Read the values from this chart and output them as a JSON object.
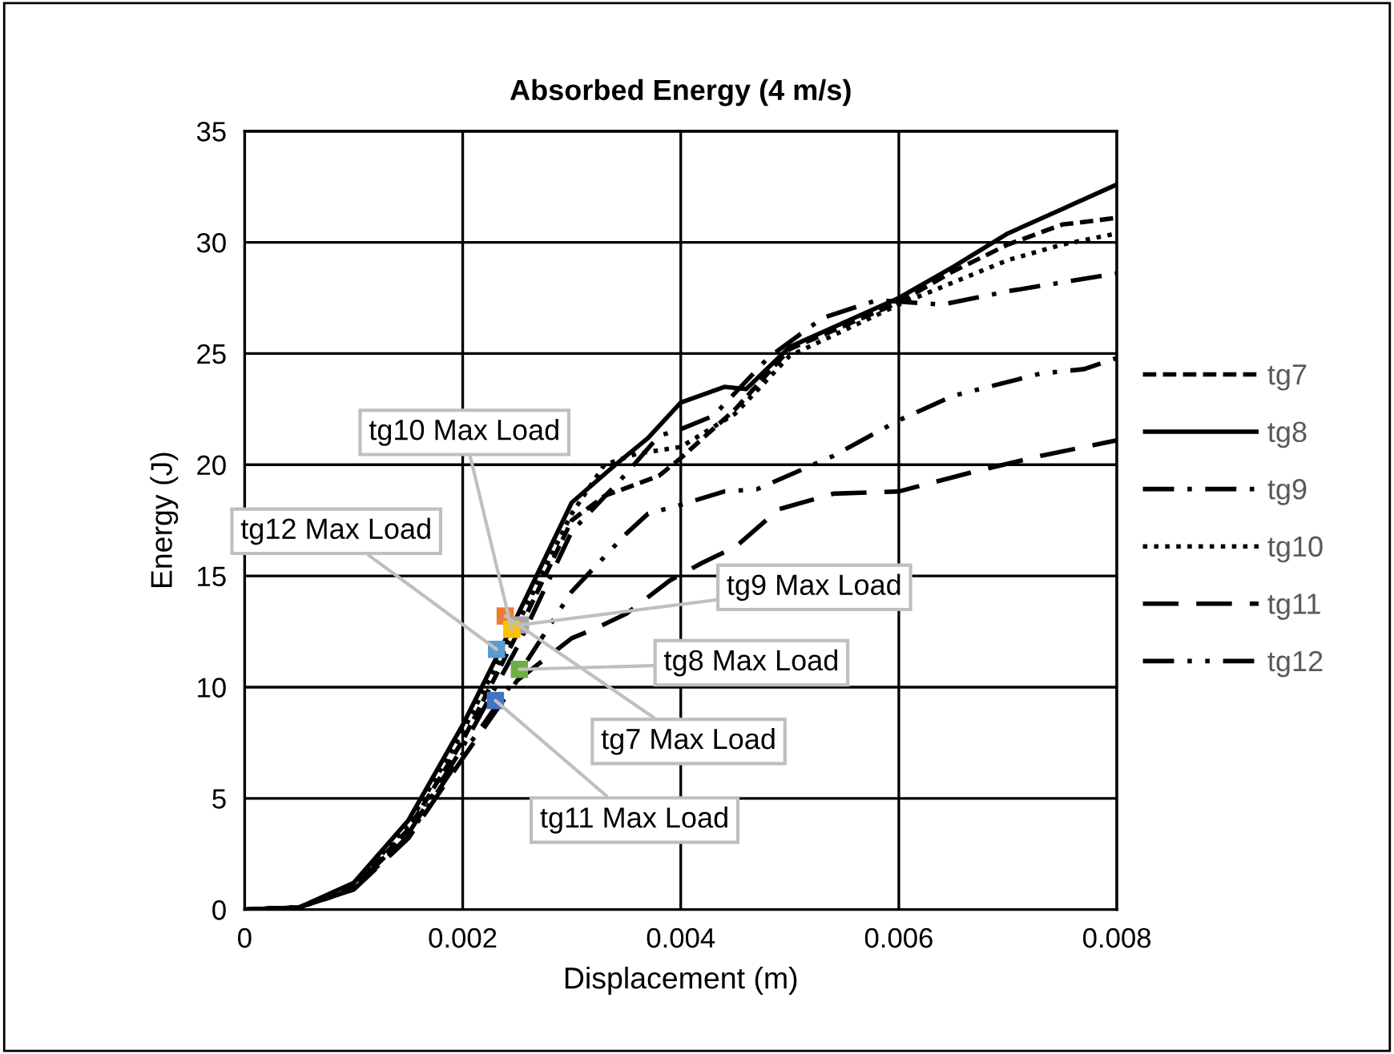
{
  "chart_data": {
    "type": "line",
    "title": "Absorbed Energy (4 m/s)",
    "xlabel": "Displacement (m)",
    "ylabel": "Energy (J)",
    "xlim": [
      0,
      0.008
    ],
    "xticks": [
      0,
      0.002,
      0.004,
      0.006,
      0.008
    ],
    "ylim": [
      0,
      35
    ],
    "yticks": [
      0,
      5,
      10,
      15,
      20,
      25,
      30,
      35
    ],
    "grid": true,
    "legend": "right",
    "series": [
      {
        "name": "tg7",
        "color": "#000000",
        "line_style": "dashed",
        "x": [
          0,
          0.0005,
          0.001,
          0.0015,
          0.002,
          0.0025,
          0.003,
          0.0033,
          0.0038,
          0.004,
          0.0045,
          0.005,
          0.006,
          0.0065,
          0.007,
          0.0075,
          0.008
        ],
        "values": [
          0,
          0.1,
          1.0,
          3.6,
          7.6,
          12.4,
          17.5,
          18.6,
          19.5,
          20.3,
          22.5,
          25.2,
          27.3,
          28.7,
          29.9,
          30.8,
          31.1
        ]
      },
      {
        "name": "tg8",
        "color": "#000000",
        "line_style": "solid",
        "x": [
          0,
          0.0005,
          0.001,
          0.0015,
          0.002,
          0.0025,
          0.003,
          0.0034,
          0.0037,
          0.004,
          0.0044,
          0.0046,
          0.005,
          0.0055,
          0.006,
          0.0065,
          0.007,
          0.0075,
          0.008
        ],
        "values": [
          0,
          0.1,
          1.2,
          4.0,
          8.3,
          13.2,
          18.3,
          20.0,
          21.2,
          22.8,
          23.5,
          23.4,
          25.3,
          26.4,
          27.5,
          28.9,
          30.4,
          31.5,
          32.6
        ]
      },
      {
        "name": "tg9",
        "color": "#000000",
        "line_style": "dashdot",
        "x": [
          0,
          0.0005,
          0.001,
          0.0015,
          0.002,
          0.0025,
          0.003,
          0.0035,
          0.0038,
          0.004,
          0.0043,
          0.0048,
          0.0053,
          0.0058,
          0.0064,
          0.007,
          0.0075,
          0.008
        ],
        "values": [
          0,
          0.1,
          1.0,
          3.4,
          7.3,
          11.8,
          17.0,
          19.6,
          21.3,
          21.6,
          22.2,
          24.8,
          26.6,
          27.4,
          27.2,
          27.8,
          28.2,
          28.6
        ]
      },
      {
        "name": "tg10",
        "color": "#000000",
        "line_style": "dotted",
        "x": [
          0,
          0.0005,
          0.001,
          0.0015,
          0.002,
          0.0025,
          0.003,
          0.0033,
          0.0036,
          0.004,
          0.0045,
          0.005,
          0.006,
          0.0065,
          0.007,
          0.0075,
          0.008
        ],
        "values": [
          0,
          0.1,
          1.1,
          3.8,
          8.0,
          12.8,
          17.8,
          20.0,
          20.5,
          20.8,
          22.3,
          24.9,
          27.2,
          28.2,
          29.2,
          29.9,
          30.4
        ]
      },
      {
        "name": "tg11",
        "color": "#000000",
        "line_style": "longdash",
        "x": [
          0,
          0.0005,
          0.001,
          0.0015,
          0.002,
          0.0025,
          0.003,
          0.0032,
          0.0035,
          0.0039,
          0.0042,
          0.0045,
          0.0049,
          0.0054,
          0.006,
          0.0067,
          0.0073,
          0.008
        ],
        "values": [
          0,
          0.1,
          0.9,
          3.2,
          6.8,
          10.3,
          12.2,
          12.6,
          13.3,
          14.8,
          15.6,
          16.3,
          18.0,
          18.7,
          18.8,
          19.7,
          20.4,
          21.1
        ]
      },
      {
        "name": "tg12",
        "color": "#000000",
        "line_style": "dashdotdot",
        "x": [
          0,
          0.0005,
          0.001,
          0.0015,
          0.002,
          0.0025,
          0.003,
          0.0035,
          0.0037,
          0.004,
          0.0044,
          0.0047,
          0.0054,
          0.006,
          0.0065,
          0.0073,
          0.0077,
          0.008
        ],
        "values": [
          0,
          0.1,
          0.9,
          3.3,
          7.0,
          10.5,
          14.3,
          16.9,
          17.8,
          18.2,
          18.8,
          18.9,
          20.4,
          22.0,
          23.1,
          24.1,
          24.3,
          24.8
        ]
      },
      {
        "type": "scatter",
        "marker": "square",
        "x": [
          0.00245,
          0.00231,
          0.00253,
          0.00252,
          0.00239,
          0.0023
        ],
        "values": [
          12.6,
          11.7,
          12.8,
          10.8,
          13.2,
          9.4
        ],
        "colors": [
          "#ffc000",
          "#5b9bd5",
          "#a5a5a5",
          "#70ad47",
          "#ed7d31",
          "#4472c4"
        ]
      }
    ],
    "annotations": [
      {
        "text": "tg10 Max Load",
        "x": 0.00245,
        "y": 12.6
      },
      {
        "text": "tg12 Max Load",
        "x": 0.00231,
        "y": 11.7
      },
      {
        "text": "tg9 Max Load",
        "x": 0.00253,
        "y": 12.8
      },
      {
        "text": "tg8 Max Load",
        "x": 0.00252,
        "y": 10.8
      },
      {
        "text": "tg7 Max Load",
        "x": 0.00239,
        "y": 13.2
      },
      {
        "text": "tg11 Max Load",
        "x": 0.0023,
        "y": 9.4
      }
    ]
  }
}
